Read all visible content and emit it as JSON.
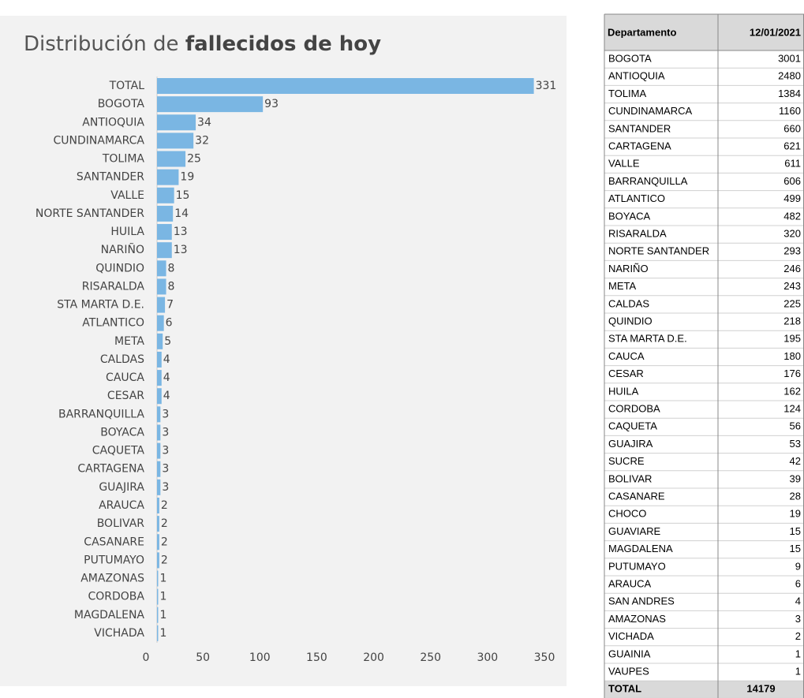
{
  "chart_data": {
    "type": "bar",
    "orientation": "horizontal",
    "title_lead": "Distribución de",
    "title_bold": "fallecidos de hoy",
    "categories": [
      "TOTAL",
      "BOGOTA",
      "ANTIOQUIA",
      "CUNDINAMARCA",
      "TOLIMA",
      "SANTANDER",
      "VALLE",
      "NORTE SANTANDER",
      "HUILA",
      "NARIÑO",
      "QUINDIO",
      "RISARALDA",
      "STA MARTA D.E.",
      "ATLANTICO",
      "META",
      "CALDAS",
      "CAUCA",
      "CESAR",
      "BARRANQUILLA",
      "BOYACA",
      "CAQUETA",
      "CARTAGENA",
      "GUAJIRA",
      "ARAUCA",
      "BOLIVAR",
      "CASANARE",
      "PUTUMAYO",
      "AMAZONAS",
      "CORDOBA",
      "MAGDALENA",
      "VICHADA"
    ],
    "values": [
      331,
      93,
      34,
      32,
      25,
      19,
      15,
      14,
      13,
      13,
      8,
      8,
      7,
      6,
      5,
      4,
      4,
      4,
      3,
      3,
      3,
      3,
      3,
      2,
      2,
      2,
      2,
      1,
      1,
      1,
      1
    ],
    "color": "#7ab6e3",
    "xlim": [
      0,
      350
    ],
    "xticks": [
      0,
      50,
      100,
      150,
      200,
      250,
      300,
      350
    ]
  },
  "table": {
    "header": [
      "Departamento",
      "12/01/2021"
    ],
    "rows": [
      [
        "BOGOTA",
        3001
      ],
      [
        "ANTIOQUIA",
        2480
      ],
      [
        "TOLIMA",
        1384
      ],
      [
        "CUNDINAMARCA",
        1160
      ],
      [
        "SANTANDER",
        660
      ],
      [
        "CARTAGENA",
        621
      ],
      [
        "VALLE",
        611
      ],
      [
        "BARRANQUILLA",
        606
      ],
      [
        "ATLANTICO",
        499
      ],
      [
        "BOYACA",
        482
      ],
      [
        "RISARALDA",
        320
      ],
      [
        "NORTE SANTANDER",
        293
      ],
      [
        "NARIÑO",
        246
      ],
      [
        "META",
        243
      ],
      [
        "CALDAS",
        225
      ],
      [
        "QUINDIO",
        218
      ],
      [
        "STA MARTA D.E.",
        195
      ],
      [
        "CAUCA",
        180
      ],
      [
        "CESAR",
        176
      ],
      [
        "HUILA",
        162
      ],
      [
        "CORDOBA",
        124
      ],
      [
        "CAQUETA",
        56
      ],
      [
        "GUAJIRA",
        53
      ],
      [
        "SUCRE",
        42
      ],
      [
        "BOLIVAR",
        39
      ],
      [
        "CASANARE",
        28
      ],
      [
        "CHOCO",
        19
      ],
      [
        "GUAVIARE",
        15
      ],
      [
        "MAGDALENA",
        15
      ],
      [
        "PUTUMAYO",
        9
      ],
      [
        "ARAUCA",
        6
      ],
      [
        "SAN ANDRES",
        4
      ],
      [
        "AMAZONAS",
        3
      ],
      [
        "VICHADA",
        2
      ],
      [
        "GUAINIA",
        1
      ],
      [
        "VAUPES",
        1
      ]
    ],
    "total": [
      "TOTAL",
      14179
    ]
  }
}
